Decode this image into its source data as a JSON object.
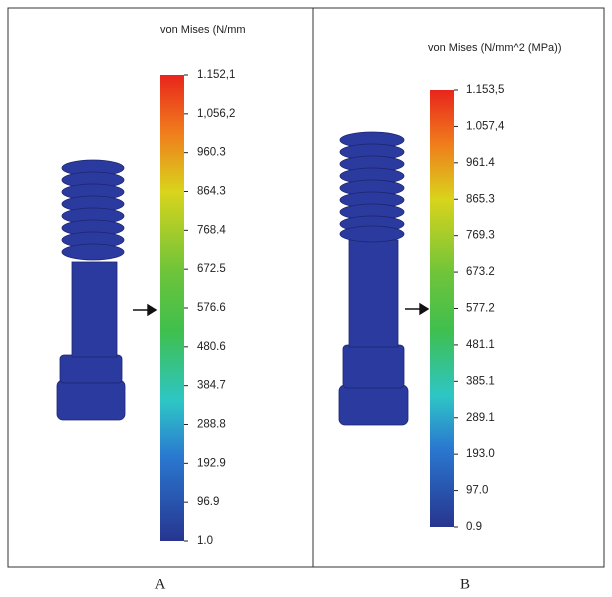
{
  "panels": [
    {
      "caption": "A",
      "legend_title": "von Mises (N/mm",
      "ticks": [
        "1.152,1",
        "1,056,2",
        "960.3",
        "864.3",
        "768.4",
        "672.5",
        "576.6",
        "480.6",
        "384.7",
        "288.8",
        "192.9",
        "96.9",
        "1.0"
      ]
    },
    {
      "caption": "B",
      "legend_title": "von Mises (N/mm^2 (MPa))",
      "ticks": [
        "1.153,5",
        "1.057,4",
        "961.4",
        "865.3",
        "769.3",
        "673.2",
        "577.2",
        "481.1",
        "385.1",
        "289.1",
        "193.0",
        "97.0",
        "0.9"
      ]
    }
  ]
}
